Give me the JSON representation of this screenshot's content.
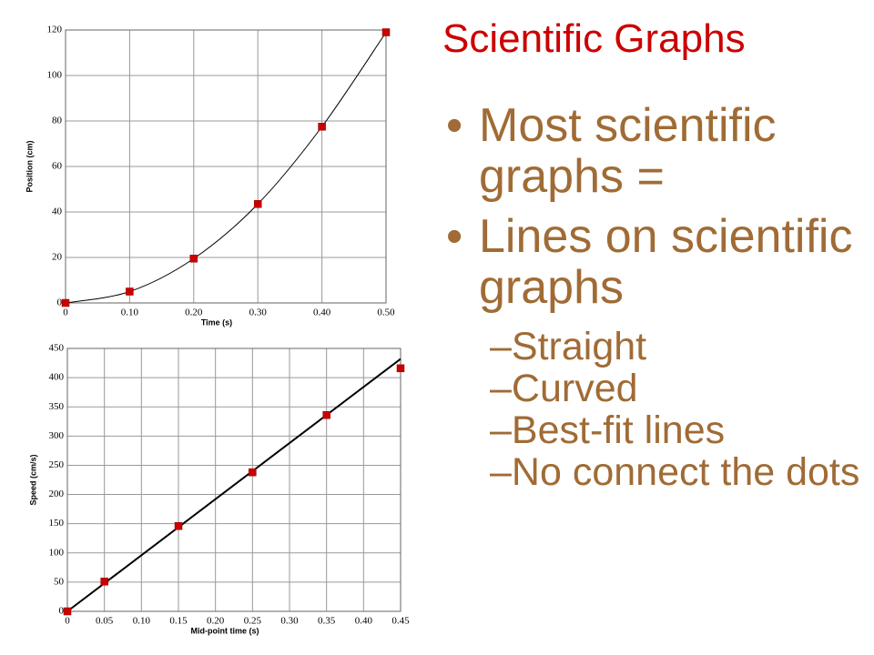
{
  "slide": {
    "title": "Scientific Graphs",
    "bullets": [
      {
        "text": "Most scientific graphs ="
      },
      {
        "text": "Lines on scientific graphs",
        "sub": [
          "–Straight",
          "–Curved",
          "–Best-fit lines",
          "–No connect the dots"
        ]
      }
    ]
  },
  "chart_data": [
    {
      "type": "scatter",
      "x_label": "Time (s)",
      "y_label": "Position (cm)",
      "x": [
        0,
        0.1,
        0.2,
        0.3,
        0.4,
        0.5
      ],
      "series": [
        {
          "color": "#cc0000",
          "values": [
            0,
            5,
            19.5,
            43.5,
            77.5,
            119
          ]
        }
      ],
      "curve_color": "#000000",
      "xlim": [
        0,
        0.5
      ],
      "ylim": [
        0,
        120
      ],
      "xticks": [
        0,
        {
          "value": 0.1,
          "label": "0.10"
        },
        {
          "value": 0.2,
          "label": "0.20"
        },
        {
          "value": 0.3,
          "label": "0.30"
        },
        {
          "value": 0.4,
          "label": "0.40"
        },
        {
          "value": 0.5,
          "label": "0.50"
        }
      ],
      "yticks": [
        0,
        20,
        40,
        60,
        80,
        100,
        120
      ],
      "grid": true
    },
    {
      "type": "scatter",
      "x_label": "Mid-point time (s)",
      "y_label": "Speed (cm/s)",
      "x": [
        0,
        0.05,
        0.15,
        0.25,
        0.35,
        0.45
      ],
      "series": [
        {
          "color": "#cc0000",
          "values": [
            0,
            51,
            146,
            238,
            336,
            416
          ]
        }
      ],
      "fit_line": {
        "color": "#000000",
        "x": [
          0,
          0.45
        ],
        "values": [
          0,
          432
        ]
      },
      "xlim": [
        0,
        0.45
      ],
      "ylim": [
        0,
        450
      ],
      "xticks": [
        0,
        0.05,
        {
          "value": 0.1,
          "label": "0.10"
        },
        0.15,
        {
          "value": 0.2,
          "label": "0.20"
        },
        0.25,
        {
          "value": 0.3,
          "label": "0.30"
        },
        0.35,
        {
          "value": 0.4,
          "label": "0.40"
        },
        0.45
      ],
      "yticks": [
        0,
        50,
        100,
        150,
        200,
        250,
        300,
        350,
        400,
        450
      ],
      "grid": true
    }
  ]
}
